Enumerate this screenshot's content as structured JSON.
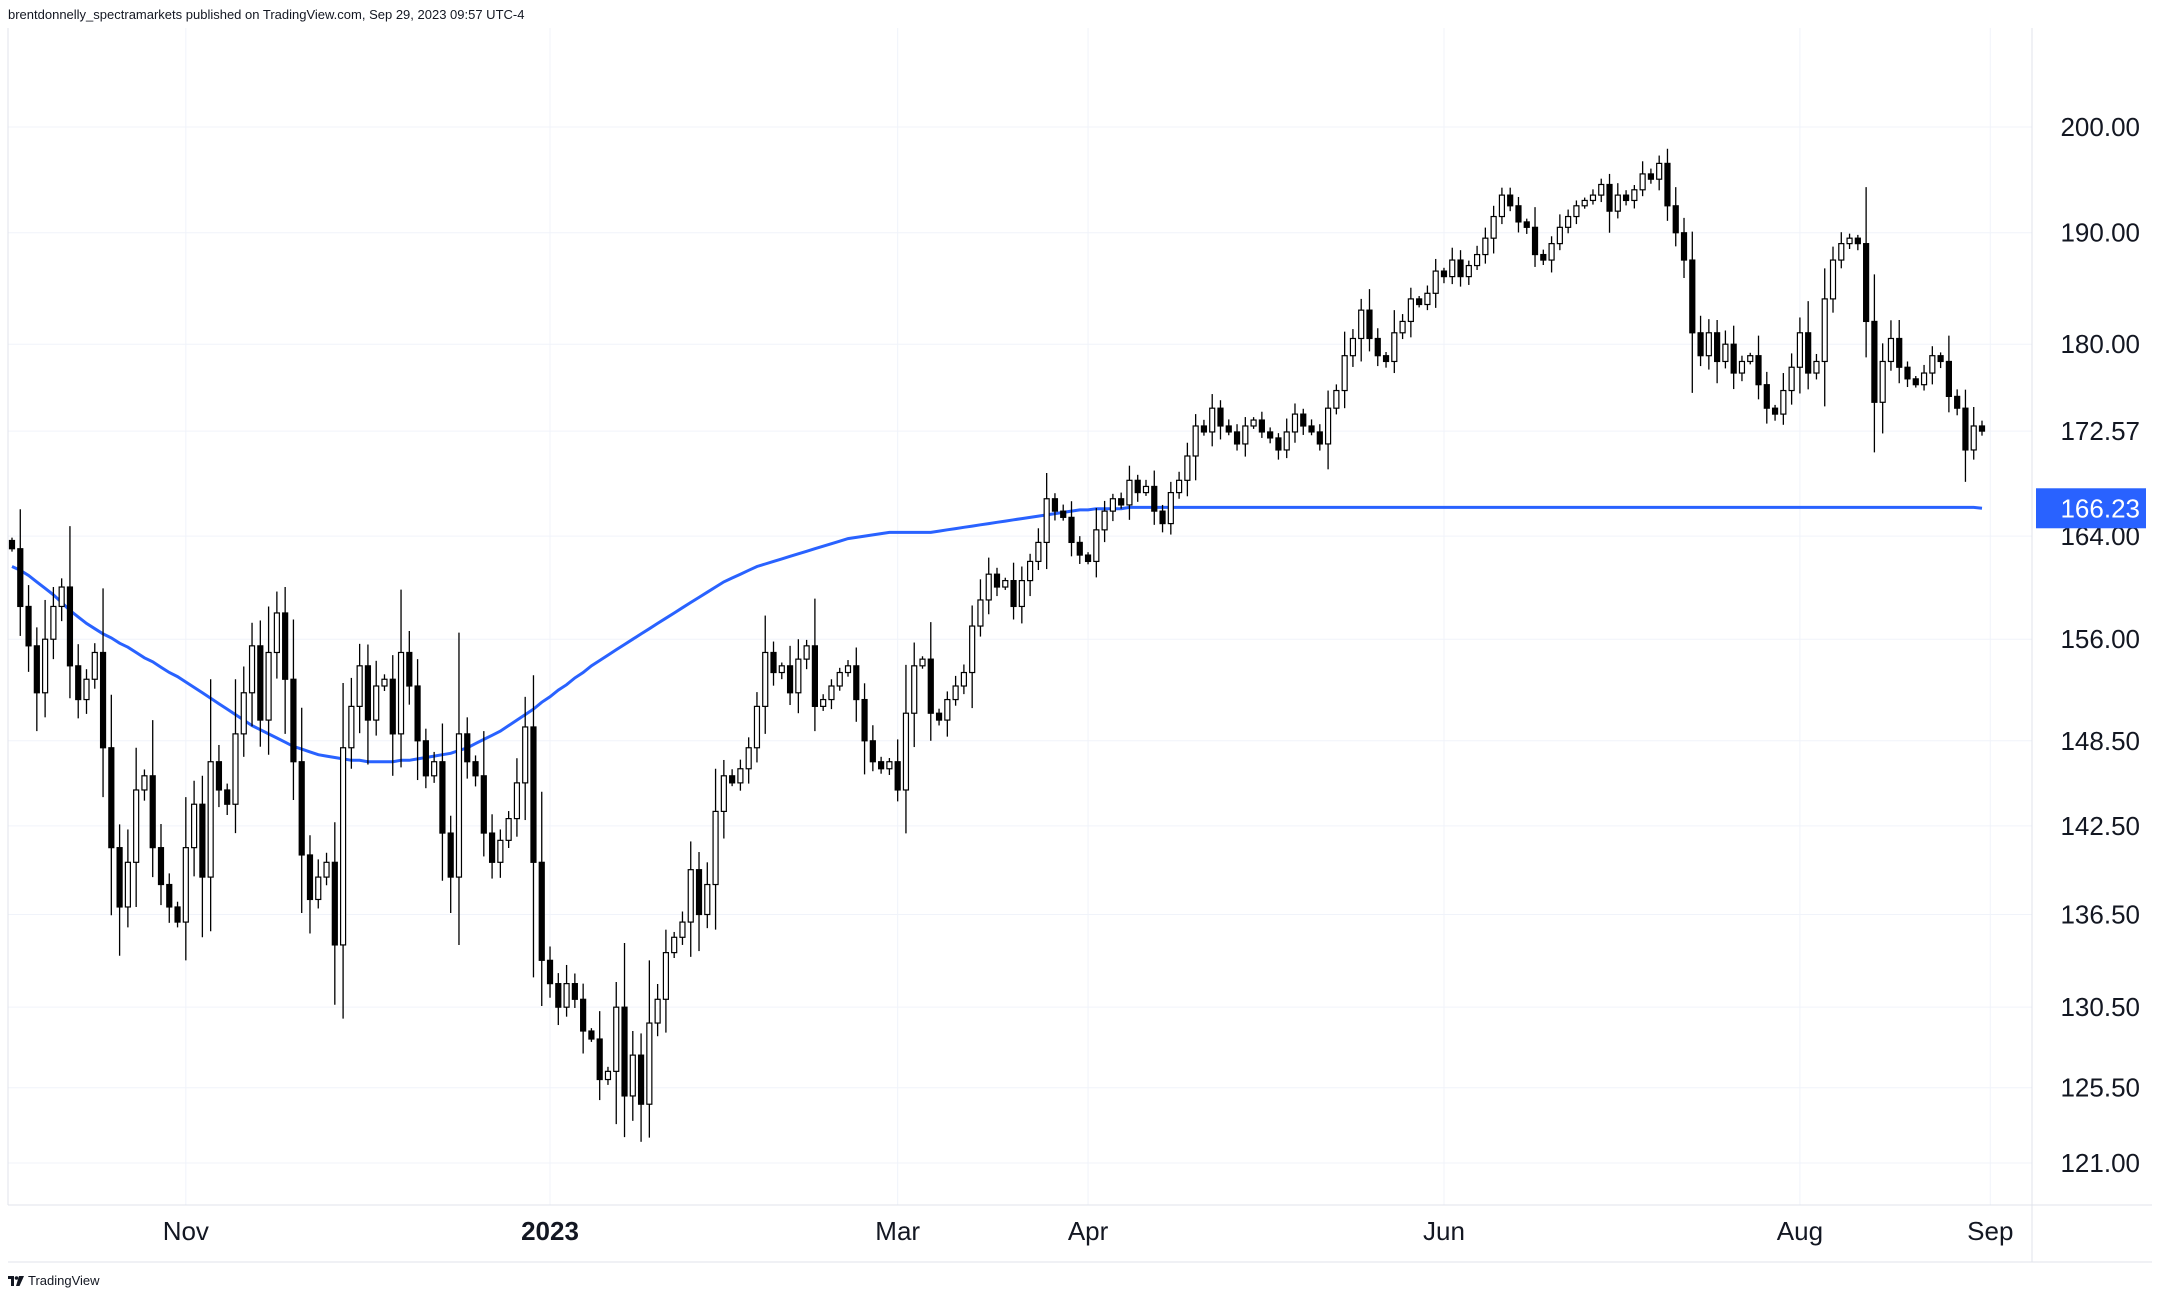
{
  "header": {
    "attribution": "brentdonnelly_spectramarkets published on TradingView.com, Sep 29, 2023 09:57 UTC-4"
  },
  "footer": {
    "brand": "TradingView",
    "logo_icon": "tradingview-logo-icon"
  },
  "colors": {
    "ma_line": "#2962ff",
    "candle_up_fill": "#ffffff",
    "candle_down_fill": "#000000",
    "candle_stroke": "#000000",
    "grid": "#f0f3fa",
    "badge_bg": "#2962ff",
    "badge_text": "#ffffff"
  },
  "chart_data": {
    "type": "candlestick",
    "title": "",
    "price_scale": "log",
    "grid": true,
    "y_ticks": [
      121.0,
      125.5,
      130.5,
      136.5,
      142.5,
      148.5,
      156.0,
      164.0,
      172.57,
      180.0,
      190.0,
      200.0
    ],
    "y_tick_labels": [
      "121.00",
      "125.50",
      "130.50",
      "136.50",
      "142.50",
      "148.50",
      "156.00",
      "164.00",
      "172.57",
      "180.00",
      "190.00",
      "200.00"
    ],
    "x_ticks": [
      {
        "label": "Nov",
        "date": "2022-11-01",
        "bold": false
      },
      {
        "label": "2023",
        "date": "2023-01-02",
        "bold": true
      },
      {
        "label": "Mar",
        "date": "2023-03-01",
        "bold": false
      },
      {
        "label": "Apr",
        "date": "2023-04-03",
        "bold": false
      },
      {
        "label": "Jun",
        "date": "2023-06-01",
        "bold": false
      },
      {
        "label": "Aug",
        "date": "2023-08-01",
        "bold": false
      },
      {
        "label": "Sep",
        "date": "2023-09-01",
        "bold": false
      }
    ],
    "last_price": "172.57",
    "ma_last": "166.23",
    "close": [
      163.0,
      158.5,
      155.5,
      152.0,
      156.0,
      158.5,
      160.0,
      154.0,
      151.5,
      153.0,
      155.0,
      148.0,
      141.0,
      137.0,
      140.0,
      145.0,
      146.0,
      141.0,
      138.5,
      137.0,
      136.0,
      141.0,
      144.0,
      139.0,
      147.0,
      145.0,
      144.0,
      149.0,
      152.0,
      155.5,
      150.0,
      155.0,
      158.0,
      153.0,
      147.0,
      140.5,
      137.5,
      139.0,
      140.0,
      134.5,
      148.0,
      151.0,
      154.0,
      150.0,
      152.5,
      153.0,
      149.0,
      155.0,
      152.5,
      148.5,
      146.0,
      147.0,
      142.0,
      139.0,
      149.0,
      147.0,
      146.0,
      142.0,
      140.0,
      141.5,
      143.0,
      145.5,
      149.5,
      140.0,
      133.5,
      132.0,
      130.5,
      132.0,
      131.0,
      129.0,
      128.5,
      126.0,
      126.5,
      130.5,
      125.0,
      127.5,
      124.5,
      129.5,
      131.0,
      134.0,
      135.0,
      136.0,
      139.5,
      136.5,
      138.5,
      143.5,
      146.0,
      145.5,
      146.5,
      148.0,
      151.0,
      155.0,
      153.5,
      154.0,
      152.0,
      154.5,
      155.5,
      151.0,
      151.5,
      152.5,
      153.5,
      154.0,
      151.5,
      148.5,
      147.0,
      146.5,
      147.0,
      145.0,
      150.5,
      154.0,
      154.5,
      150.5,
      150.0,
      151.5,
      152.5,
      153.5,
      157.0,
      159.0,
      161.0,
      160.0,
      160.5,
      158.5,
      160.5,
      162.0,
      163.5,
      167.0,
      166.0,
      165.5,
      163.5,
      162.5,
      162.0,
      164.5,
      166.0,
      167.0,
      166.5,
      168.5,
      167.5,
      168.0,
      166.0,
      165.0,
      167.5,
      168.5,
      170.5,
      173.0,
      172.5,
      174.5,
      173.0,
      172.5,
      171.5,
      173.0,
      173.5,
      172.5,
      172.0,
      171.0,
      172.5,
      174.0,
      173.0,
      172.5,
      171.5,
      174.5,
      176.0,
      179.0,
      180.5,
      183.0,
      180.5,
      179.0,
      178.5,
      181.0,
      182.0,
      184.0,
      183.5,
      184.5,
      186.5,
      186.0,
      187.5,
      186.0,
      187.0,
      188.0,
      189.5,
      191.5,
      193.5,
      192.5,
      191.0,
      190.5,
      188.0,
      187.5,
      189.0,
      190.5,
      191.5,
      192.5,
      193.0,
      193.5,
      194.5,
      192.0,
      193.5,
      193.0,
      194.0,
      195.5,
      195.0,
      196.5,
      192.5,
      190.0,
      187.5,
      181.0,
      179.0,
      181.0,
      178.5,
      180.0,
      177.5,
      178.5,
      179.0,
      176.5,
      174.5,
      174.0,
      176.0,
      178.0,
      181.0,
      177.5,
      178.5,
      184.0,
      187.5,
      189.0,
      189.5,
      189.0,
      182.0,
      175.0,
      178.5,
      180.5,
      178.0,
      177.0,
      176.5,
      177.5,
      179.0,
      178.5,
      175.5,
      174.5,
      171.0,
      173.0,
      172.57
    ],
    "ma": [
      161.6,
      161.3,
      160.9,
      160.4,
      159.9,
      159.4,
      158.8,
      158.2,
      157.7,
      157.2,
      156.8,
      156.4,
      156.1,
      155.7,
      155.4,
      155.0,
      154.6,
      154.3,
      153.9,
      153.5,
      153.2,
      152.8,
      152.4,
      152.0,
      151.6,
      151.2,
      150.8,
      150.4,
      150.0,
      149.6,
      149.3,
      149.0,
      148.7,
      148.4,
      148.1,
      147.9,
      147.7,
      147.5,
      147.4,
      147.3,
      147.2,
      147.1,
      147.1,
      147.0,
      147.0,
      147.0,
      147.0,
      147.1,
      147.1,
      147.2,
      147.3,
      147.4,
      147.5,
      147.6,
      147.8,
      148.0,
      148.3,
      148.6,
      148.9,
      149.2,
      149.6,
      150.0,
      150.4,
      150.8,
      151.3,
      151.7,
      152.2,
      152.6,
      153.1,
      153.5,
      154.0,
      154.4,
      154.8,
      155.2,
      155.6,
      156.0,
      156.4,
      156.8,
      157.2,
      157.6,
      158.0,
      158.4,
      158.8,
      159.2,
      159.6,
      160.0,
      160.4,
      160.7,
      161.0,
      161.3,
      161.6,
      161.8,
      162.0,
      162.2,
      162.4,
      162.6,
      162.8,
      163.0,
      163.2,
      163.4,
      163.6,
      163.8,
      163.9,
      164.0,
      164.1,
      164.2,
      164.3,
      164.3,
      164.3,
      164.3,
      164.3,
      164.3,
      164.4,
      164.5,
      164.6,
      164.7,
      164.8,
      164.9,
      165.0,
      165.1,
      165.2,
      165.3,
      165.4,
      165.5,
      165.6,
      165.7,
      165.8,
      165.9,
      166.0,
      166.1,
      166.1,
      166.2,
      166.2,
      166.2,
      166.2,
      166.3,
      166.3,
      166.3,
      166.3,
      166.3,
      166.3,
      166.3,
      166.3,
      166.3,
      166.3,
      166.3,
      166.3,
      166.3,
      166.3,
      166.3,
      166.3,
      166.3,
      166.3,
      166.3,
      166.3,
      166.3,
      166.3,
      166.3,
      166.3,
      166.3,
      166.3,
      166.3,
      166.3,
      166.3,
      166.3,
      166.3,
      166.3,
      166.3,
      166.3,
      166.3,
      166.3,
      166.3,
      166.3,
      166.3,
      166.3,
      166.3,
      166.3,
      166.3,
      166.3,
      166.3,
      166.3,
      166.3,
      166.3,
      166.3,
      166.3,
      166.3,
      166.3,
      166.3,
      166.3,
      166.3,
      166.3,
      166.3,
      166.3,
      166.3,
      166.3,
      166.3,
      166.3,
      166.3,
      166.3,
      166.3,
      166.3,
      166.3,
      166.3,
      166.3,
      166.3,
      166.3,
      166.3,
      166.3,
      166.3,
      166.3,
      166.3,
      166.3,
      166.3,
      166.3,
      166.3,
      166.3,
      166.3,
      166.3,
      166.3,
      166.3,
      166.3,
      166.3,
      166.3,
      166.3,
      166.3,
      166.3,
      166.3,
      166.3,
      166.3,
      166.3,
      166.3,
      166.3,
      166.3,
      166.3,
      166.3,
      166.3,
      166.3,
      166.3,
      166.23
    ]
  }
}
